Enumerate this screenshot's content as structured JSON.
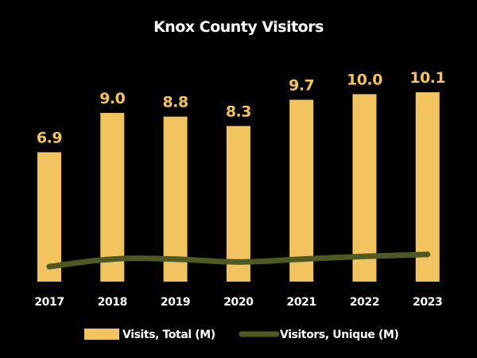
{
  "chart_data": {
    "type": "bar",
    "title": "Knox County Visitors",
    "categories": [
      "2017",
      "2018",
      "2019",
      "2020",
      "2021",
      "2022",
      "2023"
    ],
    "series": [
      {
        "name": "Visits, Total (M)",
        "type": "bar",
        "values": [
          6.9,
          9.0,
          8.8,
          8.3,
          9.7,
          10.0,
          10.1
        ],
        "data_labels": [
          "6.9",
          "9.0",
          "8.8",
          "8.3",
          "9.7",
          "10.0",
          "10.1"
        ]
      },
      {
        "name": "Visitors, Unique (M)",
        "type": "line",
        "values": [
          0.8,
          1.2,
          1.2,
          1.05,
          1.2,
          1.35,
          1.45
        ]
      }
    ],
    "ylim": [
      0,
      10.1
    ],
    "grid": false,
    "legend_position": "bottom"
  },
  "colors": {
    "background": "#000000",
    "bar": "#F2C45F",
    "line": "#4F5A22",
    "text": "#FFFFFF",
    "value_label": "#F2C45F"
  }
}
